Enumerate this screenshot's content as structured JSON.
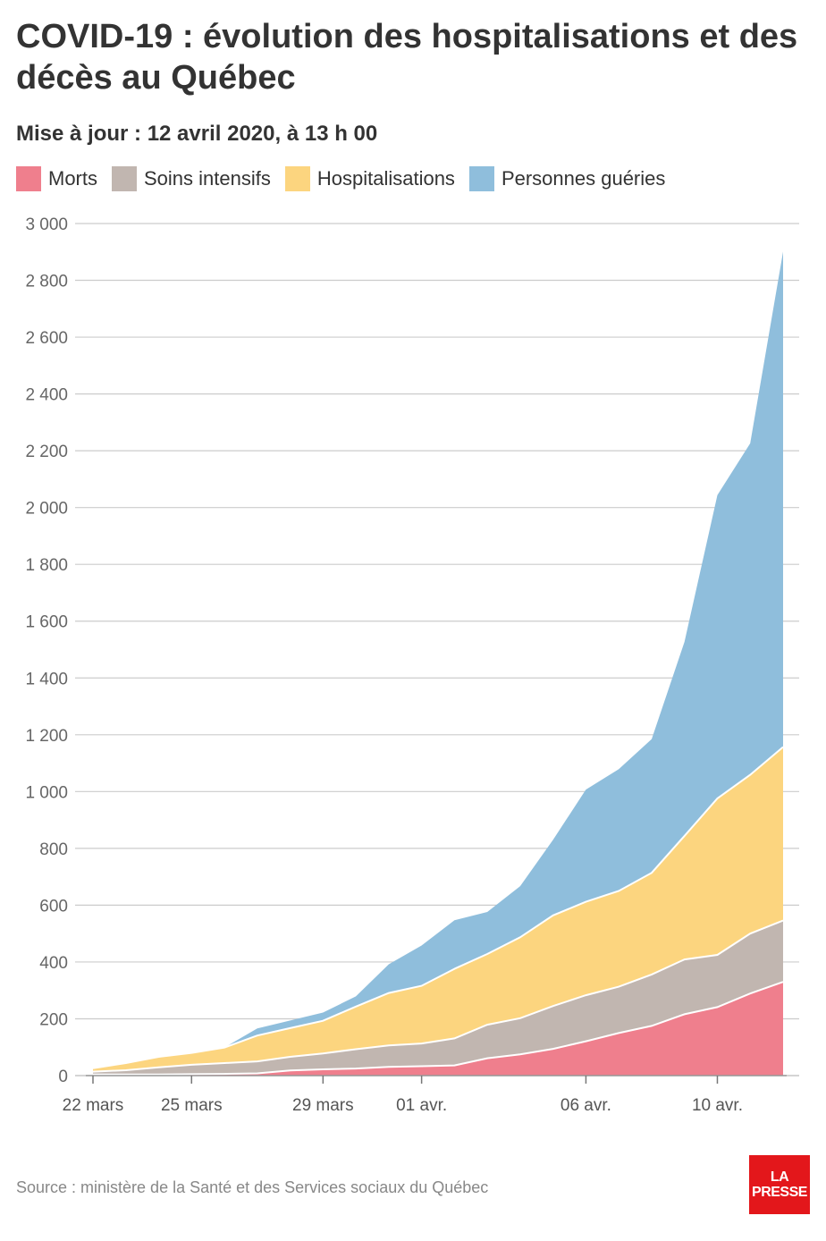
{
  "header": {
    "title": "COVID-19 : évolution des hospitalisations et des décès au Québec",
    "subtitle": "Mise à jour : 12 avril 2020, à 13 h 00"
  },
  "footer": {
    "source": "Source : ministère de la Santé et des Services sociaux du Québec",
    "logo_line1": "LA",
    "logo_line2": "PRESSE"
  },
  "chart_data": {
    "type": "area",
    "stacked": true,
    "x": [
      "22 mars",
      "23 mars",
      "24 mars",
      "25 mars",
      "26 mars",
      "27 mars",
      "28 mars",
      "29 mars",
      "30 mars",
      "31 mars",
      "01 avr.",
      "02 avr.",
      "03 avr.",
      "04 avr.",
      "05 avr.",
      "06 avr.",
      "07 avr.",
      "08 avr.",
      "09 avr.",
      "10 avr.",
      "11 avr.",
      "12 avr."
    ],
    "x_tick_labels": [
      {
        "label": "22 mars",
        "x": "22 mars"
      },
      {
        "label": "25 mars",
        "x": "25 mars"
      },
      {
        "label": "29 mars",
        "x": "29 mars"
      },
      {
        "label": "01 avr.",
        "x": "01 avr."
      },
      {
        "label": "06 avr.",
        "x": "06 avr."
      },
      {
        "label": "10 avr.",
        "x": "10 avr."
      }
    ],
    "y_ticks": [
      0,
      200,
      400,
      600,
      800,
      1000,
      1200,
      1400,
      1600,
      1800,
      2000,
      2200,
      2400,
      2600,
      2800,
      3000
    ],
    "y_tick_labels": [
      "0",
      "200",
      "400",
      "600",
      "800",
      "1 000",
      "1 200",
      "1 400",
      "1 600",
      "1 800",
      "2 000",
      "2 200",
      "2 400",
      "2 600",
      "2 800",
      "3 000"
    ],
    "ylim": [
      0,
      3000
    ],
    "grid": true,
    "legend_position": "top-left",
    "series": [
      {
        "name": "Morts",
        "color": "#ef7f8d",
        "values": [
          4,
          4,
          4,
          5,
          6,
          8,
          18,
          22,
          25,
          31,
          33,
          36,
          61,
          75,
          94,
          121,
          150,
          175,
          216,
          241,
          289,
          330
        ]
      },
      {
        "name": "Soins intensifs",
        "color": "#c1b6b0",
        "values": [
          10,
          15,
          25,
          33,
          38,
          42,
          48,
          56,
          68,
          75,
          80,
          95,
          118,
          127,
          151,
          162,
          163,
          181,
          193,
          184,
          211,
          216
        ]
      },
      {
        "name": "Hospitalisations",
        "color": "#fcd57f",
        "values": [
          12,
          25,
          37,
          42,
          55,
          91,
          101,
          115,
          150,
          185,
          203,
          245,
          249,
          285,
          319,
          329,
          337,
          358,
          435,
          551,
          559,
          611
        ]
      },
      {
        "name": "Personnes guéries",
        "color": "#8fbedc",
        "values": [
          0,
          0,
          0,
          0,
          0,
          25,
          27,
          29,
          36,
          101,
          142,
          171,
          148,
          180,
          266,
          395,
          429,
          471,
          683,
          1068,
          1167,
          1744
        ]
      }
    ]
  }
}
